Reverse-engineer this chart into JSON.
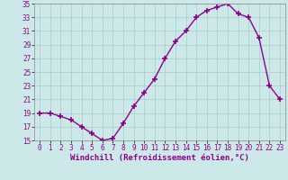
{
  "x": [
    0,
    1,
    2,
    3,
    4,
    5,
    6,
    7,
    8,
    9,
    10,
    11,
    12,
    13,
    14,
    15,
    16,
    17,
    18,
    19,
    20,
    21,
    22,
    23
  ],
  "y": [
    19,
    19,
    18.5,
    18,
    17,
    16,
    15,
    15.3,
    17.5,
    20,
    22,
    24,
    27,
    29.5,
    31,
    33,
    34,
    34.5,
    35,
    33.5,
    33,
    30,
    23,
    21
  ],
  "line_color": "#8B008B",
  "marker": "+",
  "marker_size": 4,
  "marker_lw": 1.2,
  "line_width": 1.0,
  "bg_color": "#cde8e8",
  "grid_color": "#b0d0d0",
  "xlabel": "Windchill (Refroidissement éolien,°C)",
  "ylim": [
    15,
    35
  ],
  "xlim": [
    -0.5,
    23.5
  ],
  "yticks": [
    15,
    17,
    19,
    21,
    23,
    25,
    27,
    29,
    31,
    33,
    35
  ],
  "xticks": [
    0,
    1,
    2,
    3,
    4,
    5,
    6,
    7,
    8,
    9,
    10,
    11,
    12,
    13,
    14,
    15,
    16,
    17,
    18,
    19,
    20,
    21,
    22,
    23
  ],
  "tick_label_fontsize": 5.5,
  "xlabel_fontsize": 6.5,
  "ylabel_fontsize": 6
}
